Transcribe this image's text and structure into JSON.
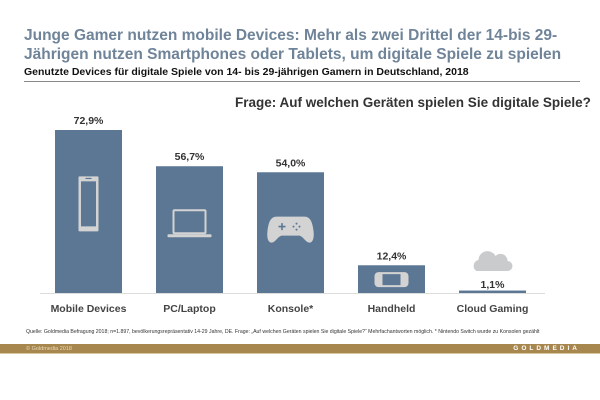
{
  "header": {
    "title": "Junge Gamer nutzen mobile Devices: Mehr als zwei Drittel der 14-bis 29-Jährigen nutzen Smartphones oder Tablets, um digitale Spiele zu spielen",
    "subtitle": "Genutzte Devices für digitale Spiele von 14- bis 29-jährigen Gamern in Deutschland, 2018",
    "question": "Frage: Auf welchen Geräten spielen Sie digitale Spiele?"
  },
  "chart_data": {
    "type": "bar",
    "categories": [
      "Mobile Devices",
      "PC/Laptop",
      "Konsole*",
      "Handheld",
      "Cloud Gaming"
    ],
    "values": [
      72.9,
      56.7,
      54.0,
      12.4,
      1.1
    ],
    "value_labels": [
      "72,9%",
      "56,7%",
      "54,0%",
      "12,4%",
      "1,1%"
    ],
    "icons": [
      "smartphone-icon",
      "laptop-icon",
      "gamepad-icon",
      "handheld-console-icon",
      "cloud-icon"
    ],
    "unit": "%",
    "ylim": [
      0,
      80
    ],
    "grid": false,
    "bar_color": "#5b7793",
    "icon_color": "#d3d3d3"
  },
  "footer": {
    "source": "Quelle: Goldmedia Befragung 2018; n=1.897, bevölkerungsrepräsentativ 14-29 Jahre, DE. Frage: „Auf welchen Geräten spielen Sie digitale Spiele?“ Mehrfachantworten möglich. * Nintendo Switch wurde zu Konsolen gezählt",
    "copyright": "© Goldmedia 2018",
    "brand": "GOLDMEDIA",
    "band_color": "#a8874f"
  }
}
